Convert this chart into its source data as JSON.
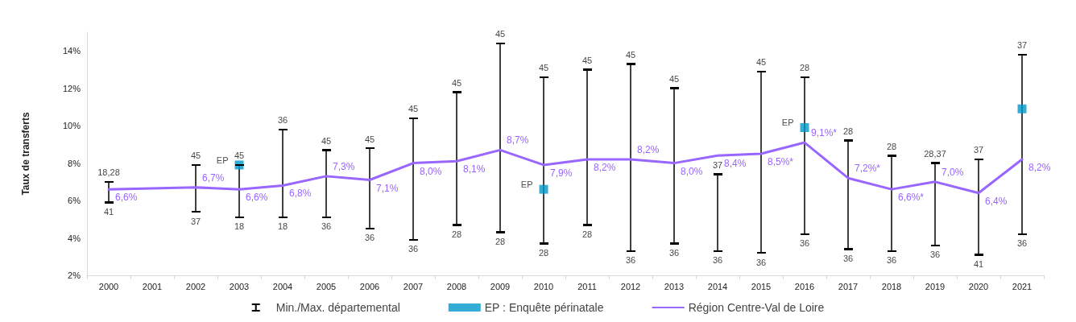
{
  "chart_data": {
    "type": "line",
    "ylabel": "Taux de transferts",
    "categories": [
      "2000",
      "2001",
      "2002",
      "2003",
      "2004",
      "2005",
      "2006",
      "2007",
      "2008",
      "2009",
      "2010",
      "2011",
      "2012",
      "2013",
      "2014",
      "2015",
      "2016",
      "2017",
      "2018",
      "2019",
      "2020",
      "2021"
    ],
    "ylim": [
      2,
      15
    ],
    "yticks": [
      {
        "value": 2,
        "label": "2%"
      },
      {
        "value": 4,
        "label": "4%"
      },
      {
        "value": 6,
        "label": "6%"
      },
      {
        "value": 8,
        "label": "8%"
      },
      {
        "value": 10,
        "label": "10%"
      },
      {
        "value": 12,
        "label": "12%"
      },
      {
        "value": 14,
        "label": "14%"
      }
    ],
    "grid": false,
    "legend": "bottom",
    "series": [
      {
        "name": "Min./Max. départemental",
        "type": "bar",
        "color": "#000000",
        "base": [
          5.9,
          null,
          5.4,
          5.1,
          5.1,
          5.1,
          4.5,
          3.9,
          4.7,
          4.3,
          3.7,
          4.7,
          3.3,
          3.7,
          3.3,
          3.2,
          4.2,
          3.4,
          3.3,
          3.6,
          3.1,
          4.2
        ],
        "values": [
          1.1,
          null,
          2.5,
          2.8,
          4.7,
          3.6,
          4.3,
          6.5,
          7.1,
          10.1,
          8.9,
          8.3,
          10.0,
          8.3,
          4.1,
          9.7,
          8.4,
          5.8,
          5.1,
          4.4,
          5.1,
          9.6
        ]
      },
      {
        "name": "EP : Enquête périnatale",
        "type": "scatter",
        "marker": "square",
        "color": "#0099cc",
        "values": [
          null,
          null,
          null,
          7.9,
          null,
          null,
          null,
          null,
          null,
          null,
          6.6,
          null,
          null,
          null,
          null,
          null,
          9.9,
          null,
          null,
          null,
          null,
          10.9
        ],
        "value_labels": [
          null,
          null,
          null,
          "EP",
          null,
          null,
          null,
          null,
          null,
          null,
          "EP",
          null,
          null,
          null,
          null,
          null,
          "EP",
          null,
          null,
          null,
          null,
          null
        ]
      },
      {
        "name": "Région Centre-Val de Loire",
        "marker": "none",
        "line_style": "solid",
        "color": "#9966ff",
        "values": [
          6.6,
          null,
          6.7,
          6.6,
          6.8,
          7.3,
          7.1,
          8.0,
          8.1,
          8.7,
          7.9,
          8.2,
          8.2,
          8.0,
          8.4,
          8.5,
          9.1,
          7.2,
          6.6,
          7.0,
          6.4,
          8.2
        ],
        "value_labels": [
          "6,6%",
          null,
          "6,7%",
          "6,6%",
          "6,8%",
          "7,3%",
          "7,1%",
          "8,0%",
          "8,1%",
          "8,7%",
          "7,9%",
          "8,2%",
          "8,2%",
          "8,0%",
          "8,4%",
          "8,5%*",
          "9,1%*",
          "7,2%*",
          "6,6%*",
          "7,0%",
          "6,4%",
          "8,2%"
        ]
      }
    ],
    "annotations": [
      {
        "text": "18,28",
        "x": "2000",
        "y": 7.0
      },
      {
        "text": "41",
        "x": "2000",
        "y": 5.9
      },
      {
        "text": "45",
        "x": "2002",
        "y": 7.9
      },
      {
        "text": "37",
        "x": "2002",
        "y": 5.4
      },
      {
        "text": "45",
        "x": "2003",
        "y": 7.9
      },
      {
        "text": "18",
        "x": "2003",
        "y": 5.1
      },
      {
        "text": "36",
        "x": "2004",
        "y": 9.8
      },
      {
        "text": "18",
        "x": "2004",
        "y": 5.1
      },
      {
        "text": "45",
        "x": "2005",
        "y": 8.7
      },
      {
        "text": "36",
        "x": "2005",
        "y": 5.1
      },
      {
        "text": "45",
        "x": "2006",
        "y": 8.8
      },
      {
        "text": "36",
        "x": "2006",
        "y": 4.5
      },
      {
        "text": "45",
        "x": "2007",
        "y": 10.4
      },
      {
        "text": "36",
        "x": "2007",
        "y": 3.9
      },
      {
        "text": "45",
        "x": "2008",
        "y": 11.8
      },
      {
        "text": "28",
        "x": "2008",
        "y": 4.7
      },
      {
        "text": "45",
        "x": "2009",
        "y": 14.4
      },
      {
        "text": "28",
        "x": "2009",
        "y": 4.3
      },
      {
        "text": "45",
        "x": "2010",
        "y": 12.6
      },
      {
        "text": "28",
        "x": "2010",
        "y": 3.7
      },
      {
        "text": "45",
        "x": "2011",
        "y": 13.0
      },
      {
        "text": "28",
        "x": "2011",
        "y": 4.7
      },
      {
        "text": "45",
        "x": "2012",
        "y": 13.3
      },
      {
        "text": "36",
        "x": "2012",
        "y": 3.3
      },
      {
        "text": "45",
        "x": "2013",
        "y": 12.0
      },
      {
        "text": "36",
        "x": "2013",
        "y": 3.7
      },
      {
        "text": "37",
        "x": "2014",
        "y": 7.4
      },
      {
        "text": "36",
        "x": "2014",
        "y": 3.3
      },
      {
        "text": "45",
        "x": "2015",
        "y": 12.9
      },
      {
        "text": "36",
        "x": "2015",
        "y": 3.2
      },
      {
        "text": "28",
        "x": "2016",
        "y": 12.6
      },
      {
        "text": "36",
        "x": "2016",
        "y": 4.2
      },
      {
        "text": "28",
        "x": "2017",
        "y": 9.2
      },
      {
        "text": "36",
        "x": "2017",
        "y": 3.4
      },
      {
        "text": "28",
        "x": "2018",
        "y": 8.4
      },
      {
        "text": "36",
        "x": "2018",
        "y": 3.3
      },
      {
        "text": "28,37",
        "x": "2019",
        "y": 8.0
      },
      {
        "text": "36",
        "x": "2019",
        "y": 3.6
      },
      {
        "text": "37",
        "x": "2020",
        "y": 8.2
      },
      {
        "text": "41",
        "x": "2020",
        "y": 3.1
      },
      {
        "text": "37",
        "x": "2021",
        "y": 13.8
      },
      {
        "text": "36",
        "x": "2021",
        "y": 4.2
      }
    ]
  }
}
